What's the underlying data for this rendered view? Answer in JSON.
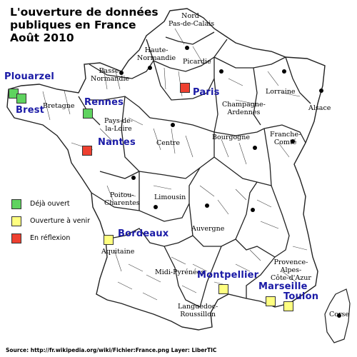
{
  "title": {
    "line1": "L'ouverture de données",
    "line2": "publiques en France",
    "line3": "Août 2010"
  },
  "colors": {
    "open": "#5fd35f",
    "coming": "#ffff80",
    "considering": "#ee4030",
    "city_label": "#1a1aa6",
    "border": "#222222"
  },
  "regions": {
    "nord": [
      "Nord-",
      "Pas-de-Calais"
    ],
    "haute_normandie": [
      "Haute-",
      "Normandie"
    ],
    "picardie": [
      "Picardie"
    ],
    "basse_normandie": [
      "Basse-",
      "Normandie"
    ],
    "bretagne": [
      "Bretagne"
    ],
    "pays_de_la_loire": [
      "Pays-de-",
      "la-Loire"
    ],
    "champagne": [
      "Champagne-",
      "Ardennes"
    ],
    "lorraine": [
      "Lorraine"
    ],
    "alsace": [
      "Alsace"
    ],
    "centre": [
      "Centre"
    ],
    "bourgogne": [
      "Bourgogne"
    ],
    "franche_comte": [
      "Franche-",
      "Comté"
    ],
    "poitou": [
      "Poitou-",
      "Charentes"
    ],
    "limousin": [
      "Limousin"
    ],
    "auvergne": [
      "Auvergne"
    ],
    "aquitaine": [
      "Aquitaine"
    ],
    "midi_pyrenees": [
      "Midi-Pyrénées"
    ],
    "languedoc": [
      "Languedoc-",
      "Roussillon"
    ],
    "provence": [
      "Provence-",
      "Alpes-",
      "Côte-d'Azur"
    ],
    "corse": [
      "Corse"
    ]
  },
  "cities": {
    "plouarzel": {
      "label": "Plouarzel",
      "status": "open"
    },
    "brest": {
      "label": "Brest",
      "status": "open"
    },
    "rennes": {
      "label": "Rennes",
      "status": "open"
    },
    "paris": {
      "label": "Paris",
      "status": "considering"
    },
    "nantes": {
      "label": "Nantes",
      "status": "considering"
    },
    "bordeaux": {
      "label": "Bordeaux",
      "status": "coming"
    },
    "montpellier": {
      "label": "Montpellier",
      "status": "coming"
    },
    "marseille": {
      "label": "Marseille",
      "status": "coming"
    },
    "toulon": {
      "label": "Toulon",
      "status": "coming"
    }
  },
  "legend": [
    {
      "label": "Déjà ouvert",
      "status": "open"
    },
    {
      "label": "Ouverture à venir",
      "status": "coming"
    },
    {
      "label": "En réflexion",
      "status": "considering"
    }
  ],
  "source": "Source: http://fr.wikipedia.org/wiki/Fichier:France.png Layer: LiberTIC"
}
